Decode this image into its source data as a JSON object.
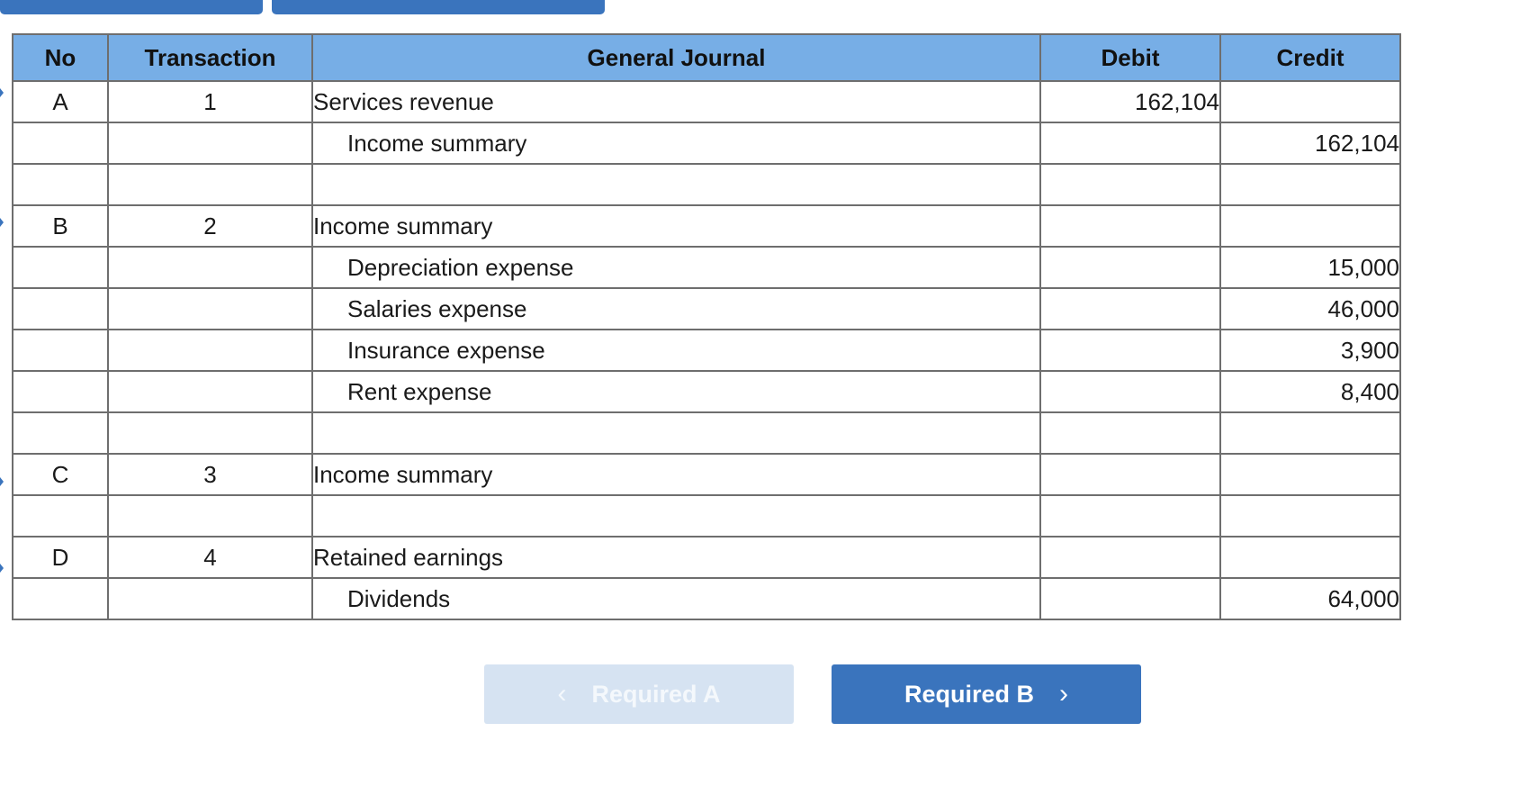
{
  "table": {
    "headers": {
      "no": "No",
      "transaction": "Transaction",
      "account": "General Journal",
      "debit": "Debit",
      "credit": "Credit"
    },
    "rows": [
      {
        "no": "A",
        "transaction": "1",
        "account": "Services revenue",
        "indent": false,
        "debit": "162,104",
        "credit": ""
      },
      {
        "no": "",
        "transaction": "",
        "account": "Income summary",
        "indent": true,
        "debit": "",
        "credit": "162,104"
      },
      {
        "no": "",
        "transaction": "",
        "account": "",
        "indent": false,
        "debit": "",
        "credit": ""
      },
      {
        "no": "B",
        "transaction": "2",
        "account": "Income summary",
        "indent": false,
        "debit": "",
        "credit": ""
      },
      {
        "no": "",
        "transaction": "",
        "account": "Depreciation expense",
        "indent": true,
        "debit": "",
        "credit": "15,000"
      },
      {
        "no": "",
        "transaction": "",
        "account": "Salaries expense",
        "indent": true,
        "debit": "",
        "credit": "46,000"
      },
      {
        "no": "",
        "transaction": "",
        "account": "Insurance expense",
        "indent": true,
        "debit": "",
        "credit": "3,900"
      },
      {
        "no": "",
        "transaction": "",
        "account": "Rent expense",
        "indent": true,
        "debit": "",
        "credit": "8,400"
      },
      {
        "no": "",
        "transaction": "",
        "account": "",
        "indent": false,
        "debit": "",
        "credit": ""
      },
      {
        "no": "C",
        "transaction": "3",
        "account": "Income summary",
        "indent": false,
        "debit": "",
        "credit": ""
      },
      {
        "no": "",
        "transaction": "",
        "account": "",
        "indent": false,
        "debit": "",
        "credit": ""
      },
      {
        "no": "D",
        "transaction": "4",
        "account": "Retained earnings",
        "indent": false,
        "debit": "",
        "credit": ""
      },
      {
        "no": "",
        "transaction": "",
        "account": "Dividends",
        "indent": true,
        "debit": "",
        "credit": "64,000"
      }
    ]
  },
  "navigation": {
    "prev_label": "Required A",
    "next_label": "Required B",
    "prev_icon": "chevron-left-icon",
    "next_icon": "chevron-right-icon"
  },
  "colors": {
    "header_bg": "#77aee6",
    "primary_button": "#3a74bd",
    "disabled_button": "#d6e3f2"
  }
}
